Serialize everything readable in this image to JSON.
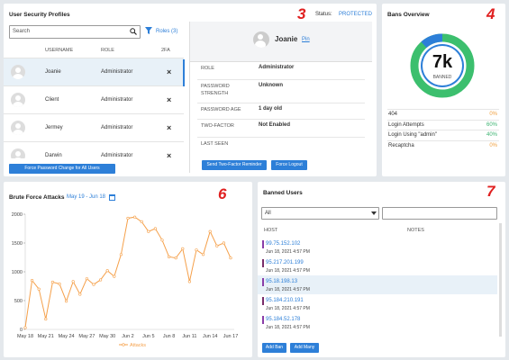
{
  "user_security": {
    "title": "User Security Profiles",
    "badge": "3",
    "status_label": "Status:",
    "status": "PROTECTED",
    "search_placeholder": "Search",
    "roles_filter": "Roles (3)",
    "columns": [
      "USERNAME",
      "ROLE",
      "2FA"
    ],
    "rows": [
      [
        "Joanie",
        "Administrator",
        "×"
      ],
      [
        "Client",
        "Administrator",
        "×"
      ],
      [
        "Jermey",
        "Administrator",
        "×"
      ],
      [
        "Darwin",
        "Administrator",
        "×"
      ]
    ],
    "force_button": "Force Password Change for All Users",
    "detail": {
      "name": "Joanie",
      "pin": "Pin",
      "fields": [
        {
          "label": "ROLE",
          "value": "Administrator"
        },
        {
          "label": "PASSWORD STRENGTH",
          "value": "Unknown"
        },
        {
          "label": "PASSWORD AGE",
          "value": "1 day old"
        },
        {
          "label": "TWO-FACTOR",
          "value": "Not Enabled"
        },
        {
          "label": "LAST SEEN"
        }
      ],
      "buttons": [
        "Send Two-Factor Reminder",
        "Force Logout"
      ]
    }
  },
  "bans_overview": {
    "title": "Bans Overview",
    "badge": "4",
    "total": "7k",
    "total_label": "BANNED",
    "rows": [
      {
        "label": "404",
        "value": "0%"
      },
      {
        "label": "Login Attempts",
        "value": "60%"
      },
      {
        "label": "Login Using \"admin\"",
        "value": "40%"
      },
      {
        "label": "Recaptcha",
        "value": "0%"
      }
    ]
  },
  "brute_force": {
    "title": "Brute Force Attacks",
    "date_range": "May 19 - Jun 18",
    "badge": "6",
    "chart_data": {
      "type": "line",
      "categories": [
        "May 18",
        null,
        null,
        "May 21",
        null,
        null,
        "May 24",
        null,
        null,
        "May 27",
        null,
        null,
        "May 30",
        null,
        null,
        "Jun 2",
        null,
        null,
        "Jun 5",
        null,
        null,
        "Jun 8",
        null,
        null,
        "Jun 11",
        null,
        null,
        "Jun 14",
        null,
        null,
        "Jun 17"
      ],
      "series": [
        {
          "name": "Attacks",
          "color": "#f5a04a",
          "values": [
            30,
            850,
            700,
            180,
            820,
            790,
            490,
            830,
            610,
            880,
            780,
            860,
            1020,
            920,
            1300,
            1930,
            1950,
            1870,
            1700,
            1750,
            1550,
            1260,
            1240,
            1400,
            830,
            1380,
            1300,
            1700,
            1450,
            1500,
            1240
          ]
        }
      ],
      "ylim": [
        0,
        2000
      ],
      "yticks": [
        0,
        500,
        1000,
        1500,
        2000
      ]
    }
  },
  "banned_users": {
    "title": "Banned Users",
    "badge": "7",
    "filter": "All",
    "columns": [
      "HOST",
      "NOTES"
    ],
    "rows": [
      {
        "host": "99.75.152.102",
        "date": "Jun 18, 2021 4:57 PM"
      },
      {
        "host": "95.217.201.199",
        "date": "Jun 18, 2021 4:57 PM"
      },
      {
        "host": "95.18.198.13",
        "date": "Jun 18, 2021 4:57 PM"
      },
      {
        "host": "95.184.210.191",
        "date": "Jun 18, 2021 4:57 PM"
      },
      {
        "host": "95.184.52.178",
        "date": "Jun 18, 2021 4:57 PM"
      }
    ],
    "buttons": [
      "Add Ban",
      "Add Many"
    ]
  }
}
